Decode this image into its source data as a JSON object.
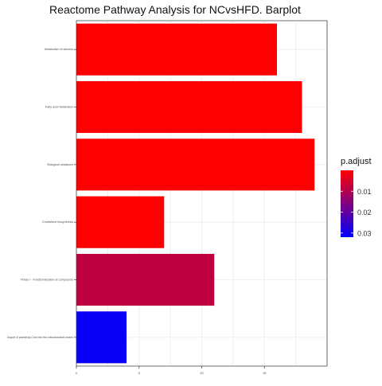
{
  "chart_data": {
    "type": "bar",
    "orientation": "horizontal",
    "title": "Reactome Pathway Analysis for NCvsHFD. Barplot",
    "xlabel": "",
    "ylabel": "",
    "categories": [
      "Metabolism of steroids",
      "Fatty acid metabolism",
      "Biological oxidations",
      "Cholesterol biosynthesis",
      "Phase I - Functionalization of compounds",
      "Import of palmitoyl-CoA into the mitochondrial matrix"
    ],
    "values": [
      16,
      18,
      19,
      7,
      11,
      4
    ],
    "p_adjust": [
      0.0001,
      0.0001,
      0.0001,
      0.0001,
      0.008,
      0.031
    ],
    "xlim": [
      0,
      20
    ],
    "x_ticks": [
      0,
      5,
      10,
      15
    ],
    "grid": true,
    "legend": {
      "title": "p.adjust",
      "position": "right",
      "ticks": [
        0.01,
        0.02,
        0.03
      ],
      "range": [
        0.0,
        0.032
      ],
      "color_low": "#ff0000",
      "color_high": "#0000ff"
    }
  }
}
